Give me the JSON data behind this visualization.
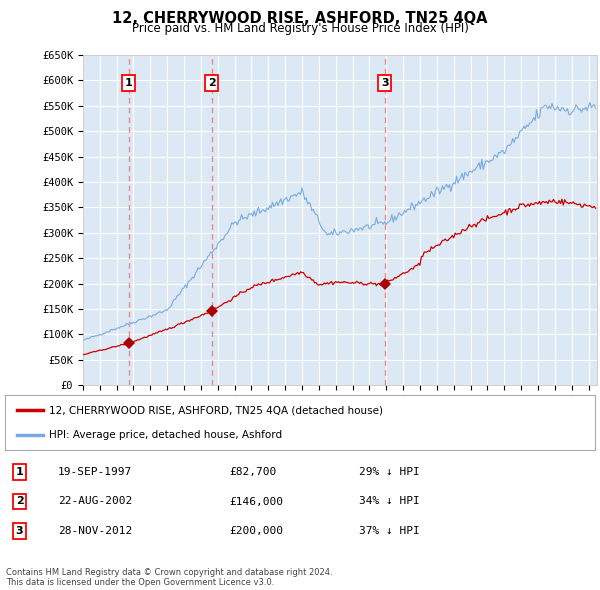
{
  "title": "12, CHERRYWOOD RISE, ASHFORD, TN25 4QA",
  "subtitle": "Price paid vs. HM Land Registry's House Price Index (HPI)",
  "bg_color": "#dce9f5",
  "grid_color": "#ffffff",
  "ylim": [
    0,
    650000
  ],
  "yticks": [
    0,
    50000,
    100000,
    150000,
    200000,
    250000,
    300000,
    350000,
    400000,
    450000,
    500000,
    550000,
    600000,
    650000
  ],
  "ytick_labels": [
    "£0",
    "£50K",
    "£100K",
    "£150K",
    "£200K",
    "£250K",
    "£300K",
    "£350K",
    "£400K",
    "£450K",
    "£500K",
    "£550K",
    "£600K",
    "£650K"
  ],
  "xlim_start": 1995.0,
  "xlim_end": 2025.5,
  "sale_dates": [
    1997.72,
    2002.64,
    2012.91
  ],
  "sale_prices": [
    82700,
    146000,
    200000
  ],
  "sale_labels": [
    "1",
    "2",
    "3"
  ],
  "sale_date_str": [
    "19-SEP-1997",
    "22-AUG-2002",
    "28-NOV-2012"
  ],
  "sale_price_str": [
    "£82,700",
    "£146,000",
    "£200,000"
  ],
  "sale_hpi_str": [
    "29% ↓ HPI",
    "34% ↓ HPI",
    "37% ↓ HPI"
  ],
  "line_color_property": "#cc0000",
  "line_color_hpi": "#7aaadd",
  "marker_color": "#aa0000",
  "vline_color": "#ee8888",
  "footer_text": "Contains HM Land Registry data © Crown copyright and database right 2024.\nThis data is licensed under the Open Government Licence v3.0.",
  "legend_label_property": "12, CHERRYWOOD RISE, ASHFORD, TN25 4QA (detached house)",
  "legend_label_hpi": "HPI: Average price, detached house, Ashford"
}
